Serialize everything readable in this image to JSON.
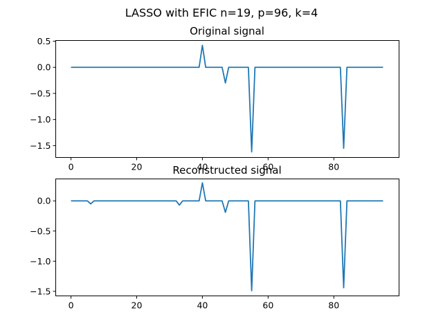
{
  "figure": {
    "title": "LASSO with EFIC n=19, p=96, k=4"
  },
  "chart_data": [
    {
      "type": "line",
      "title": "Original signal",
      "xlim": [
        -4.75,
        99.75
      ],
      "ylim": [
        -1.72,
        0.52
      ],
      "xticks": [
        0,
        20,
        40,
        60,
        80
      ],
      "yticks": [
        0.5,
        0.0,
        -0.5,
        -1.0,
        -1.5
      ],
      "xtick_labels": [
        "0",
        "20",
        "40",
        "60",
        "80"
      ],
      "ytick_labels": [
        "0.5",
        "0.0",
        "−0.5",
        "−1.0",
        "−1.5"
      ],
      "grid": false,
      "color": "#1f77b4",
      "x_range": [
        0,
        95
      ],
      "nonzero": [
        {
          "x": 40,
          "y": 0.42
        },
        {
          "x": 47,
          "y": -0.3
        },
        {
          "x": 55,
          "y": -1.62
        },
        {
          "x": 83,
          "y": -1.55
        }
      ]
    },
    {
      "type": "line",
      "title": "Reconstructed signal",
      "xlim": [
        -4.75,
        99.75
      ],
      "ylim": [
        -1.57,
        0.37
      ],
      "xticks": [
        0,
        20,
        40,
        60,
        80
      ],
      "yticks": [
        0.0,
        -0.5,
        -1.0,
        -1.5
      ],
      "xtick_labels": [
        "0",
        "20",
        "40",
        "60",
        "80"
      ],
      "ytick_labels": [
        "0.0",
        "−0.5",
        "−1.0",
        "−1.5"
      ],
      "grid": false,
      "color": "#1f77b4",
      "x_range": [
        0,
        95
      ],
      "nonzero": [
        {
          "x": 6,
          "y": -0.05
        },
        {
          "x": 33,
          "y": -0.07
        },
        {
          "x": 40,
          "y": 0.3
        },
        {
          "x": 47,
          "y": -0.19
        },
        {
          "x": 55,
          "y": -1.49
        },
        {
          "x": 83,
          "y": -1.44
        }
      ]
    }
  ]
}
